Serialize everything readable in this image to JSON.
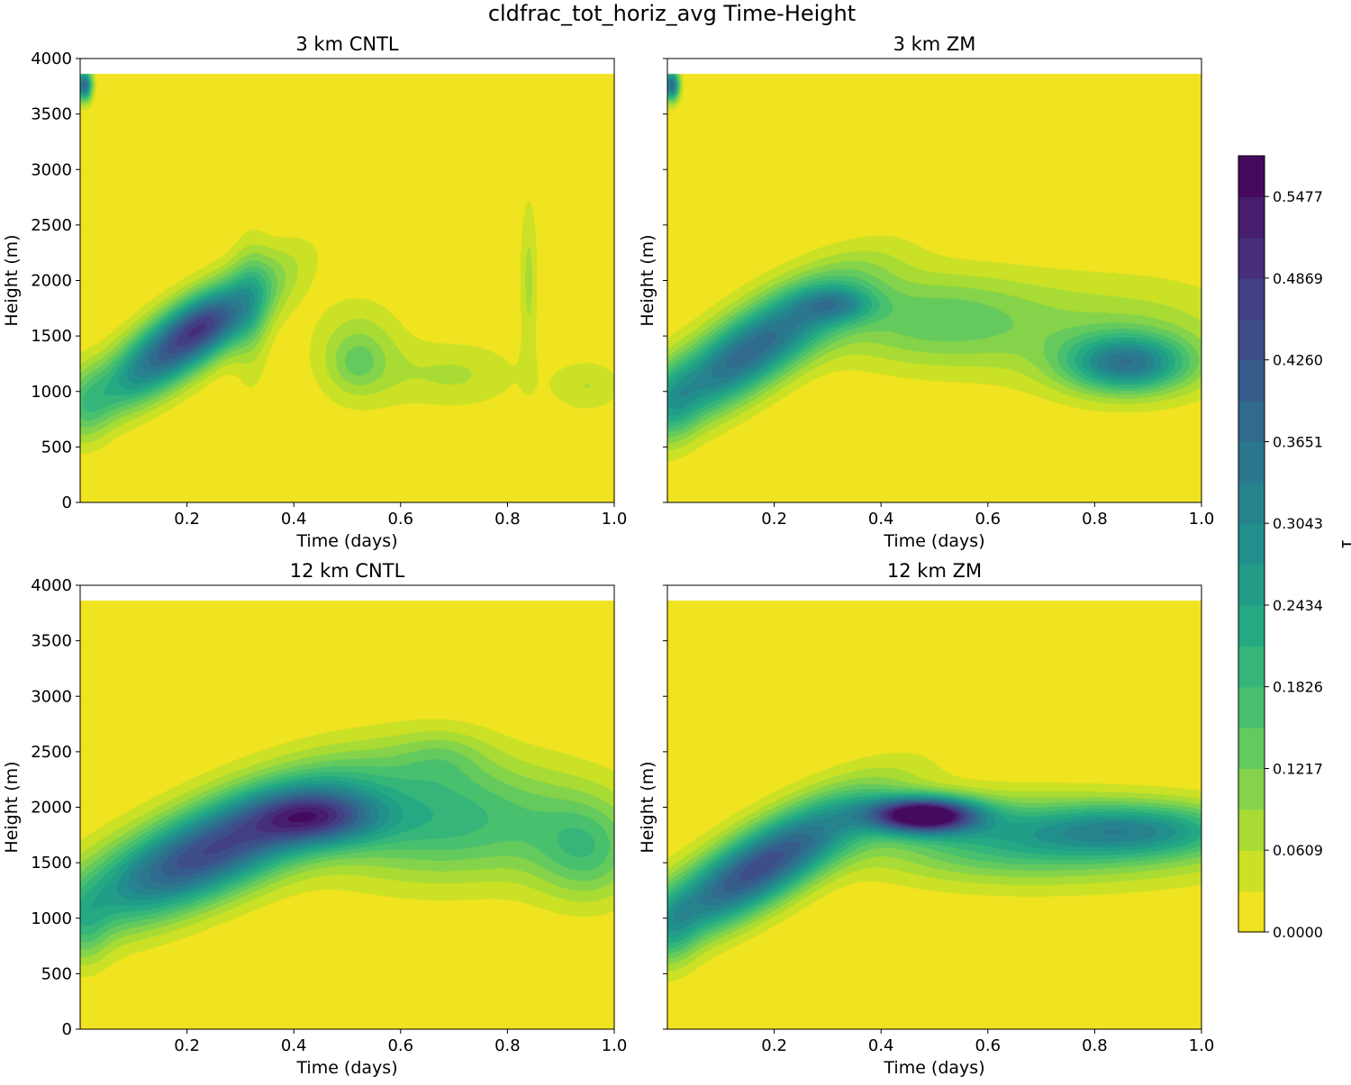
{
  "chart_data": {
    "type": "filled-contour",
    "title": "cldfrac_tot_horiz_avg Time-Height",
    "colorbar": {
      "label": "1",
      "ticks": [
        "0.0000",
        "0.0609",
        "0.1217",
        "0.1826",
        "0.2434",
        "0.3043",
        "0.3651",
        "0.4260",
        "0.4869",
        "0.5477"
      ],
      "tick_values": [
        0.0,
        0.0609,
        0.1217,
        0.1826,
        0.2434,
        0.3043,
        0.3651,
        0.426,
        0.4869,
        0.5477
      ],
      "range": [
        0.0,
        0.578
      ],
      "levels": 19,
      "colormap": "viridis_r"
    },
    "colors": {
      "background": "#f0e31f",
      "viridis": [
        "#440154",
        "#482475",
        "#414487",
        "#355f8d",
        "#2a788e",
        "#21908d",
        "#22a884",
        "#42be71",
        "#7ad151",
        "#bddf26",
        "#fde725"
      ]
    },
    "panels": [
      {
        "title": "3 km CNTL",
        "xlabel": "Time (days)",
        "ylabel": "Height (m)",
        "xlim": [
          0.0,
          1.0
        ],
        "ylim": [
          0,
          4000
        ],
        "xticks": [
          "0.2",
          "0.4",
          "0.6",
          "0.8",
          "1.0"
        ],
        "yticks": [
          "0",
          "500",
          "1000",
          "1500",
          "2000",
          "2500",
          "3000",
          "3500",
          "4000"
        ],
        "show_ytick_labels": true,
        "data_top": 3860,
        "features": [
          {
            "t": 0.19,
            "z": 1450,
            "st": 0.11,
            "sz": 240,
            "v": 0.42,
            "tilt": 3000
          },
          {
            "t": 0.24,
            "z": 1600,
            "st": 0.05,
            "sz": 170,
            "v": 0.1,
            "tilt": 1000
          },
          {
            "t": 0.32,
            "z": 1700,
            "st": 0.025,
            "sz": 500,
            "v": 0.07,
            "tilt": 0
          },
          {
            "t": 0.52,
            "z": 1350,
            "st": 0.06,
            "sz": 330,
            "v": 0.09,
            "tilt": 0
          },
          {
            "t": 0.52,
            "z": 1250,
            "st": 0.03,
            "sz": 150,
            "v": 0.05,
            "tilt": 0
          },
          {
            "t": 0.7,
            "z": 1150,
            "st": 0.09,
            "sz": 220,
            "v": 0.065,
            "tilt": 0
          },
          {
            "t": 0.84,
            "z": 2000,
            "st": 0.012,
            "sz": 550,
            "v": 0.07,
            "tilt": 0
          },
          {
            "t": 0.95,
            "z": 1050,
            "st": 0.05,
            "sz": 170,
            "v": 0.06,
            "tilt": 0
          },
          {
            "t": 0.008,
            "z": 3760,
            "st": 0.01,
            "sz": 100,
            "v": 0.38,
            "tilt": 0
          }
        ]
      },
      {
        "title": "3 km ZM",
        "xlabel": "Time (days)",
        "ylabel": "Height (m)",
        "xlim": [
          0.0,
          1.0
        ],
        "ylim": [
          0,
          4000
        ],
        "xticks": [
          "0.2",
          "0.4",
          "0.6",
          "0.8",
          "1.0"
        ],
        "yticks": [
          "0",
          "500",
          "1000",
          "1500",
          "2000",
          "2500",
          "3000",
          "3500",
          "4000"
        ],
        "show_ytick_labels": false,
        "data_top": 3860,
        "features": [
          {
            "t": 0.15,
            "z": 1350,
            "st": 0.13,
            "sz": 270,
            "v": 0.38,
            "tilt": 2800
          },
          {
            "t": 0.32,
            "z": 1780,
            "st": 0.05,
            "sz": 110,
            "v": 0.14,
            "tilt": 0
          },
          {
            "t": 0.5,
            "z": 1650,
            "st": 0.15,
            "sz": 300,
            "v": 0.14,
            "tilt": 0
          },
          {
            "t": 0.86,
            "z": 1250,
            "st": 0.08,
            "sz": 180,
            "v": 0.3,
            "tilt": 0
          },
          {
            "t": 0.86,
            "z": 1500,
            "st": 0.17,
            "sz": 380,
            "v": 0.08,
            "tilt": 0
          },
          {
            "t": 0.008,
            "z": 3760,
            "st": 0.01,
            "sz": 100,
            "v": 0.38,
            "tilt": 0
          }
        ]
      },
      {
        "title": "12 km CNTL",
        "xlabel": "Time (days)",
        "ylabel": "Height (m)",
        "xlim": [
          0.0,
          1.0
        ],
        "ylim": [
          0,
          4000
        ],
        "xticks": [
          "0.2",
          "0.4",
          "0.6",
          "0.8",
          "1.0"
        ],
        "yticks": [
          "0",
          "500",
          "1000",
          "1500",
          "2000",
          "2500",
          "3000",
          "3500",
          "4000"
        ],
        "show_ytick_labels": true,
        "data_top": 3860,
        "features": [
          {
            "t": 0.24,
            "z": 1600,
            "st": 0.17,
            "sz": 300,
            "v": 0.45,
            "tilt": 1900
          },
          {
            "t": 0.45,
            "z": 1900,
            "st": 0.08,
            "sz": 170,
            "v": 0.25,
            "tilt": 0
          },
          {
            "t": 0.68,
            "z": 1900,
            "st": 0.18,
            "sz": 380,
            "v": 0.2,
            "tilt": 0
          },
          {
            "t": 0.68,
            "z": 2450,
            "st": 0.06,
            "sz": 180,
            "v": 0.06,
            "tilt": 0
          },
          {
            "t": 0.95,
            "z": 1600,
            "st": 0.07,
            "sz": 320,
            "v": 0.14,
            "tilt": 0
          }
        ]
      },
      {
        "title": "12 km ZM",
        "xlabel": "Time (days)",
        "ylabel": "Height (m)",
        "xlim": [
          0.0,
          1.0
        ],
        "ylim": [
          0,
          4000
        ],
        "xticks": [
          "0.2",
          "0.4",
          "0.6",
          "0.8",
          "1.0"
        ],
        "yticks": [
          "0",
          "500",
          "1000",
          "1500",
          "2000",
          "2500",
          "3000",
          "3500",
          "4000"
        ],
        "show_ytick_labels": false,
        "data_top": 3860,
        "features": [
          {
            "t": 0.17,
            "z": 1450,
            "st": 0.14,
            "sz": 260,
            "v": 0.44,
            "tilt": 2600
          },
          {
            "t": 0.48,
            "z": 1930,
            "st": 0.07,
            "sz": 110,
            "v": 0.58,
            "tilt": 0
          },
          {
            "t": 0.6,
            "z": 1720,
            "st": 0.17,
            "sz": 260,
            "v": 0.16,
            "tilt": 0
          },
          {
            "t": 0.88,
            "z": 1800,
            "st": 0.14,
            "sz": 170,
            "v": 0.22,
            "tilt": 0
          },
          {
            "t": 0.86,
            "z": 1650,
            "st": 0.2,
            "sz": 260,
            "v": 0.08,
            "tilt": 0
          }
        ]
      }
    ]
  }
}
